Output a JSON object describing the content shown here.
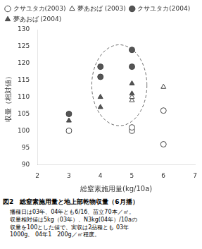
{
  "chart_data": {
    "type": "scatter",
    "title": "図2　総窒素施用量と地上部乾物収量（6月播）",
    "subtitle": "播種日は03年、04年とも6/16、苗立70本／㎡。\n収量相対値は5kg（03年）、N3kg(04年）/10aの\n収量を100とした値で、実収は2品種とも 03年\n1000g、 04年1　200g／㎡程度。",
    "x_label": "総窒素施用量(kg/10a)",
    "y_label": "収量（相対値）",
    "xlim": [
      2,
      7
    ],
    "ylim": [
      90,
      130
    ],
    "xticks": [
      2,
      3,
      4,
      5,
      6,
      7
    ],
    "yticks": [
      90,
      95,
      100,
      105,
      110,
      115,
      120,
      125,
      130
    ],
    "grid": false,
    "legend": "upper left",
    "series": [
      {
        "name": "クサユタカ(2003)",
        "marker": "circle",
        "color": "white",
        "x": [
          3,
          5,
          5,
          6,
          6
        ],
        "values": [
          100,
          100,
          101,
          96,
          106
        ]
      },
      {
        "name": "夢あおば (2003)",
        "marker": "triangle",
        "color": "white",
        "x": [
          3,
          5,
          5,
          6
        ],
        "values": [
          100,
          109,
          110,
          113
        ]
      },
      {
        "name": "クサユタカ(2004)",
        "marker": "circle",
        "color": "#555555",
        "x": [
          3,
          4,
          4,
          5,
          5
        ],
        "values": [
          105,
          116,
          119,
          119,
          124
        ]
      },
      {
        "name": "夢あおば (2004)",
        "marker": "triangle",
        "color": "#555555",
        "x": [
          3,
          4,
          4,
          5,
          5
        ],
        "values": [
          103,
          107,
          110,
          111,
          114
        ]
      }
    ],
    "ellipse": {
      "center_x": 4.6,
      "center_y": 113.5,
      "width": 1.75,
      "height": 24,
      "line_style": "dashed",
      "color": "#666666"
    }
  }
}
